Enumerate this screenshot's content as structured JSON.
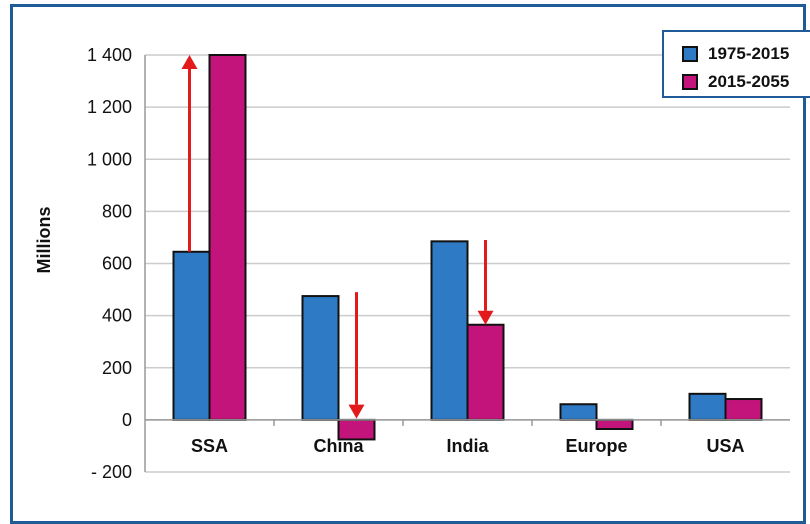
{
  "colors": {
    "series1": "#2e7ac4",
    "series2": "#c2147a",
    "arrow": "#e31a1c",
    "frame": "#1f5b99",
    "grid": "#cccccc"
  },
  "chart_data": {
    "type": "bar",
    "title": "",
    "xlabel": "",
    "ylabel": "Millions",
    "ylim": [
      -200,
      1400
    ],
    "yticks": [
      1400,
      1200,
      1000,
      800,
      600,
      400,
      200,
      0,
      -200
    ],
    "ytick_labels": [
      "1 400",
      "1 200",
      "1 000",
      "800",
      "600",
      "400",
      "200",
      "0",
      "- 200"
    ],
    "grid": true,
    "legend_position": "top-right",
    "categories": [
      "SSA",
      "China",
      "India",
      "Europe",
      "USA"
    ],
    "series": [
      {
        "name": "1975-2015",
        "values": [
          645,
          475,
          685,
          60,
          100
        ]
      },
      {
        "name": "2015-2055",
        "values": [
          1400,
          -75,
          365,
          -35,
          80
        ]
      }
    ],
    "arrows": [
      {
        "category": "SSA",
        "from": 645,
        "to": 1400
      },
      {
        "category": "China",
        "from": 490,
        "to": 5
      },
      {
        "category": "India",
        "from": 690,
        "to": 365
      }
    ]
  }
}
